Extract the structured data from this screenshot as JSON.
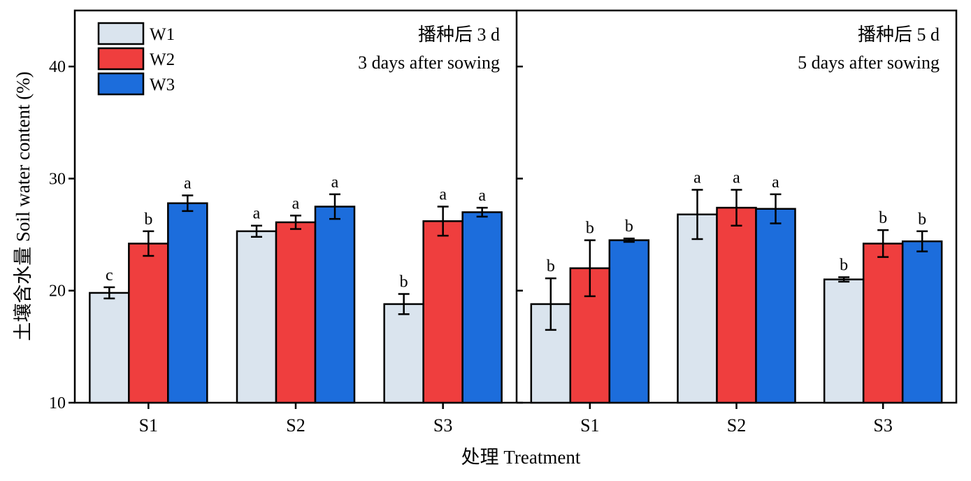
{
  "chart_data": {
    "type": "bar",
    "ylabel": "土壤含水量 Soil water content (%)",
    "xlabel": "处理 Treatment",
    "ylim": [
      10,
      45
    ],
    "yticks": [
      10,
      20,
      30,
      40
    ],
    "grid": false,
    "legend_placement": "top-left",
    "series_names": [
      "W1",
      "W2",
      "W3"
    ],
    "series_colors": [
      "#dae4ee",
      "#ef3e3e",
      "#1c6ddc"
    ],
    "panels": [
      {
        "title_cn": "播种后 3 d",
        "title_en": "3 days after sowing",
        "categories": [
          "S1",
          "S2",
          "S3"
        ],
        "series": [
          {
            "name": "W1",
            "values": [
              19.8,
              25.3,
              18.8
            ],
            "errors": [
              0.5,
              0.5,
              0.9
            ],
            "letters": [
              "c",
              "a",
              "b"
            ]
          },
          {
            "name": "W2",
            "values": [
              24.2,
              26.1,
              26.2
            ],
            "errors": [
              1.1,
              0.6,
              1.3
            ],
            "letters": [
              "b",
              "a",
              "a"
            ]
          },
          {
            "name": "W3",
            "values": [
              27.8,
              27.5,
              27.0
            ],
            "errors": [
              0.7,
              1.1,
              0.4
            ],
            "letters": [
              "a",
              "a",
              "a"
            ]
          }
        ]
      },
      {
        "title_cn": "播种后 5 d",
        "title_en": "5 days after sowing",
        "categories": [
          "S1",
          "S2",
          "S3"
        ],
        "series": [
          {
            "name": "W1",
            "values": [
              18.8,
              26.8,
              21.0
            ],
            "errors": [
              2.3,
              2.2,
              0.2
            ],
            "letters": [
              "b",
              "a",
              "b"
            ]
          },
          {
            "name": "W2",
            "values": [
              22.0,
              27.4,
              24.2
            ],
            "errors": [
              2.5,
              1.6,
              1.2
            ],
            "letters": [
              "b",
              "a",
              "b"
            ]
          },
          {
            "name": "W3",
            "values": [
              24.5,
              27.3,
              24.4
            ],
            "errors": [
              0.15,
              1.3,
              0.9
            ],
            "letters": [
              "b",
              "a",
              "b"
            ]
          }
        ]
      }
    ]
  }
}
